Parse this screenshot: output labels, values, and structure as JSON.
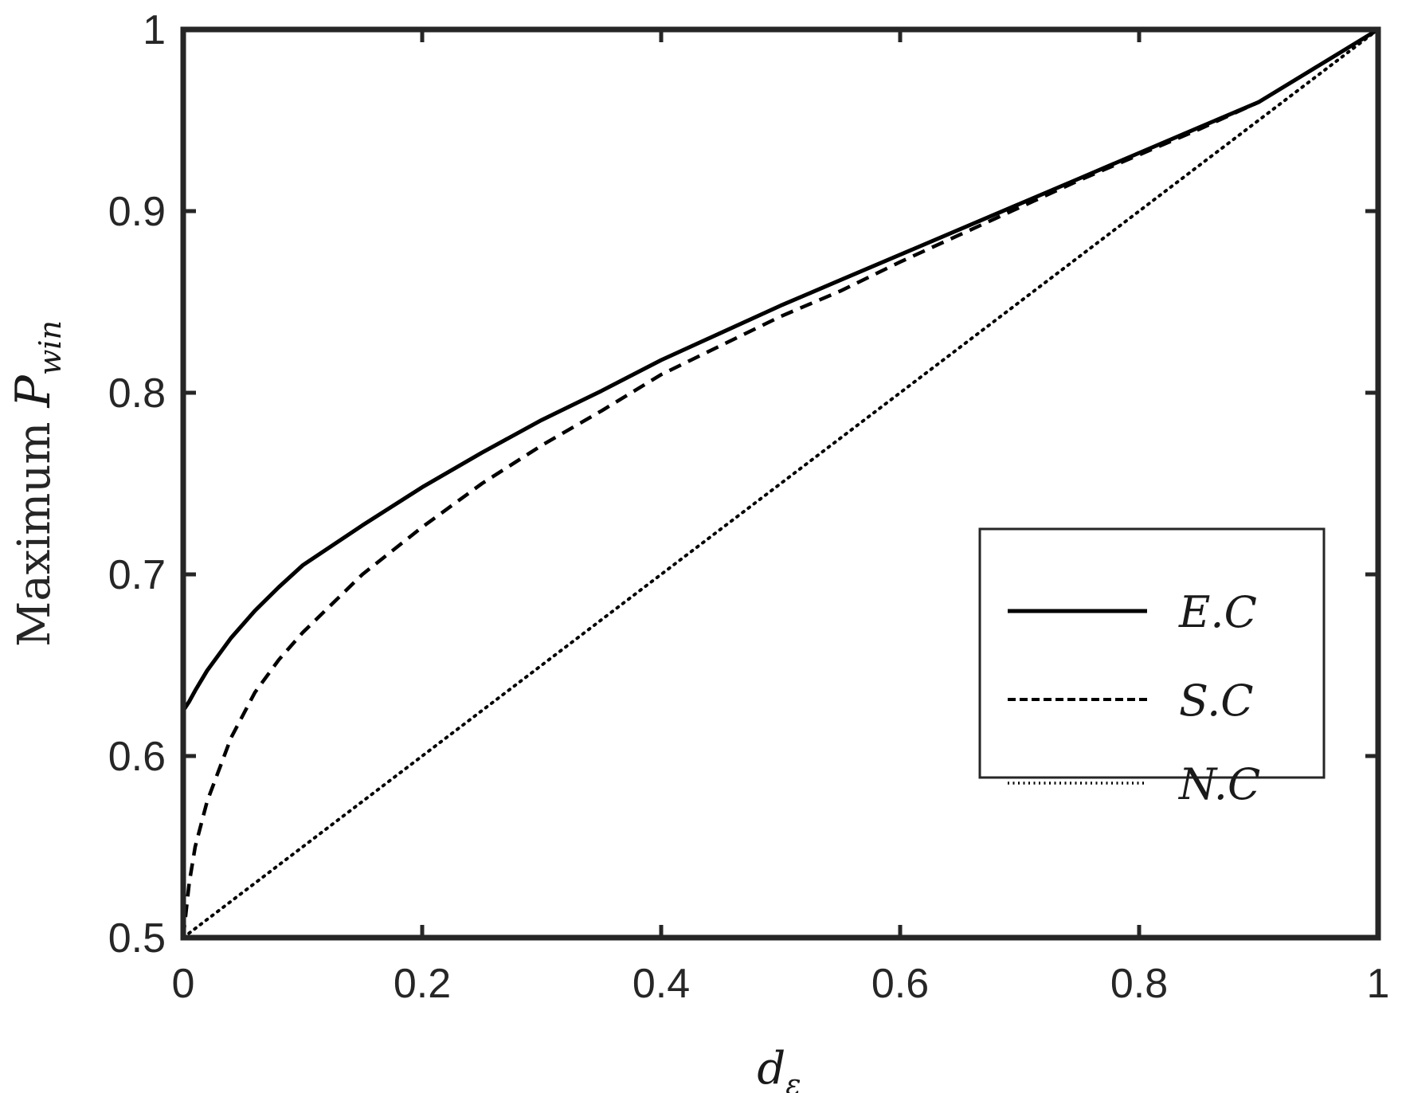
{
  "chart_data": {
    "type": "line",
    "xlabel": "d",
    "xlabel_sub": "ε",
    "ylabel_word": "Maximum",
    "ylabel_var": "P",
    "ylabel_sub": "win",
    "xlim": [
      0,
      1
    ],
    "ylim": [
      0.5,
      1
    ],
    "x_ticks": [
      "0",
      "0.2",
      "0.4",
      "0.6",
      "0.8",
      "1"
    ],
    "y_ticks": [
      "0.5",
      "0.6",
      "0.7",
      "0.8",
      "0.9",
      "1"
    ],
    "grid": false,
    "legend_position": "lower-right",
    "x": [
      0,
      0.005,
      0.01,
      0.02,
      0.04,
      0.06,
      0.08,
      0.1,
      0.15,
      0.2,
      0.25,
      0.3,
      0.35,
      0.4,
      0.45,
      0.5,
      0.55,
      0.6,
      0.65,
      0.7,
      0.75,
      0.8,
      0.85,
      0.9,
      0.95,
      1.0
    ],
    "series": [
      {
        "name": "E.C",
        "style": "solid",
        "values": [
          0.625,
          0.63,
          0.636,
          0.647,
          0.665,
          0.68,
          0.693,
          0.705,
          0.727,
          0.748,
          0.767,
          0.785,
          0.801,
          0.818,
          0.833,
          0.848,
          0.862,
          0.876,
          0.89,
          0.904,
          0.918,
          0.932,
          0.946,
          0.96,
          0.98,
          1.0
        ]
      },
      {
        "name": "S.C",
        "style": "dashed",
        "values": [
          0.5,
          0.53,
          0.55,
          0.575,
          0.61,
          0.635,
          0.653,
          0.668,
          0.7,
          0.726,
          0.75,
          0.771,
          0.79,
          0.81,
          0.826,
          0.842,
          0.856,
          0.872,
          0.887,
          0.902,
          0.917,
          0.931,
          0.945,
          0.96,
          0.98,
          1.0
        ]
      },
      {
        "name": "N.C",
        "style": "dotted",
        "values": [
          0.5,
          0.5025,
          0.505,
          0.51,
          0.52,
          0.53,
          0.54,
          0.55,
          0.575,
          0.6,
          0.625,
          0.65,
          0.675,
          0.7,
          0.725,
          0.75,
          0.775,
          0.8,
          0.825,
          0.85,
          0.875,
          0.9,
          0.925,
          0.95,
          0.975,
          1.0
        ]
      }
    ]
  }
}
